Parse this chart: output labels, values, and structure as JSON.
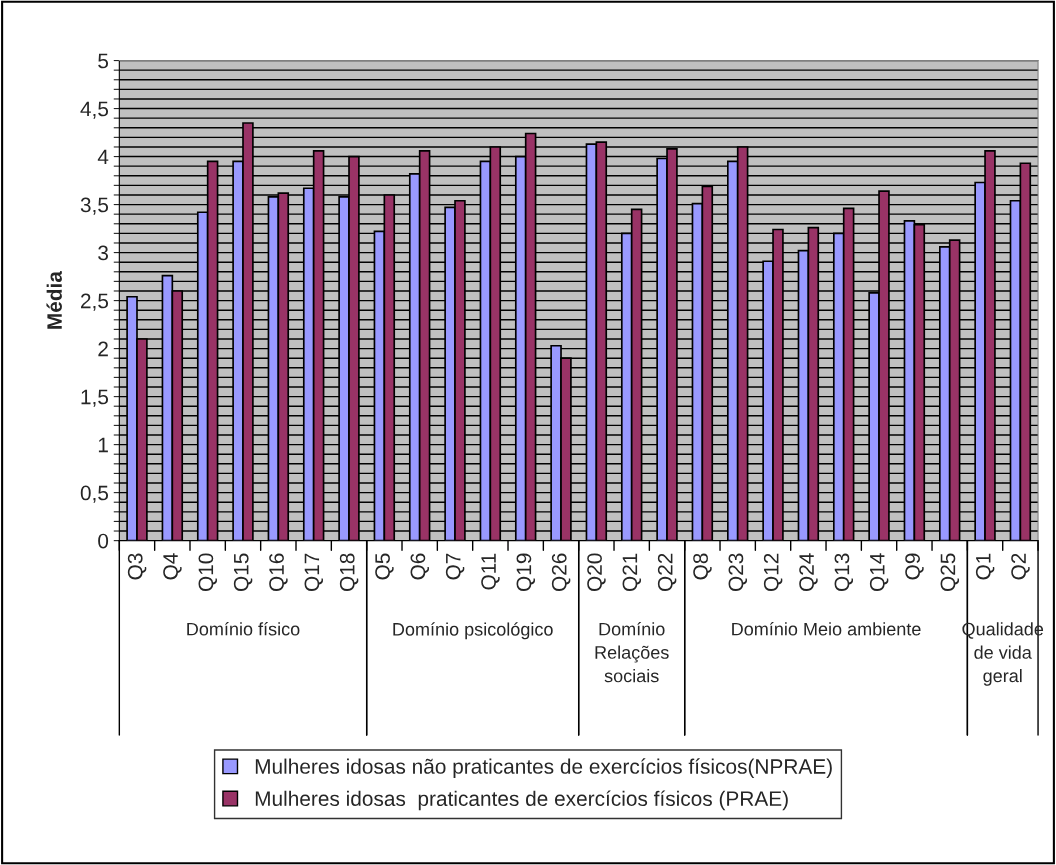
{
  "chart_data": {
    "type": "bar",
    "ylabel": "Média",
    "categories": [
      "Q3",
      "Q4",
      "Q10",
      "Q15",
      "Q16",
      "Q17",
      "Q18",
      "Q5",
      "Q6",
      "Q7",
      "Q11",
      "Q19",
      "Q26",
      "Q20",
      "Q21",
      "Q22",
      "Q8",
      "Q23",
      "Q12",
      "Q24",
      "Q13",
      "Q14",
      "Q9",
      "Q25",
      "Q1",
      "Q2"
    ],
    "series": [
      {
        "name": "Mulheres idosas não praticantes de exercícios físicos(NPRAE)",
        "color": "#9999ff",
        "values": [
          2.54,
          2.76,
          3.42,
          3.95,
          3.58,
          3.67,
          3.58,
          3.22,
          3.82,
          3.47,
          3.95,
          4.0,
          2.03,
          4.13,
          3.2,
          3.98,
          3.51,
          3.95,
          2.91,
          3.02,
          3.2,
          2.58,
          3.33,
          3.06,
          3.73,
          3.54
        ]
      },
      {
        "name": "Mulheres idosas  praticantes de exercícios físicos (PRAE)",
        "color": "#993366",
        "values": [
          2.1,
          2.6,
          3.95,
          4.35,
          3.62,
          4.06,
          4.0,
          3.6,
          4.06,
          3.54,
          4.1,
          4.24,
          1.9,
          4.15,
          3.45,
          4.08,
          3.69,
          4.1,
          3.24,
          3.26,
          3.46,
          3.64,
          3.29,
          3.13,
          4.06,
          3.93
        ]
      }
    ],
    "annotations": [
      "Domínio físico",
      "Domínio psicológico",
      "Domínio\nRelações\nsociais",
      "Domínio Meio ambiente",
      "Qualidade\nde vida\ngeral"
    ],
    "ylim": [
      0,
      5
    ],
    "yticks": [
      0,
      {
        "value": 0.1,
        "label": null
      },
      {
        "value": 0.2,
        "label": null
      },
      {
        "value": 0.3,
        "label": null
      },
      {
        "value": 0.4,
        "label": null
      },
      {
        "value": 0.5,
        "label": "0,5"
      },
      {
        "value": 0.6,
        "label": null
      },
      {
        "value": 0.7,
        "label": null
      },
      {
        "value": 0.8,
        "label": null
      },
      {
        "value": 0.9,
        "label": null
      },
      1,
      {
        "value": 1.1,
        "label": null
      },
      {
        "value": 1.2,
        "label": null
      },
      {
        "value": 1.3,
        "label": null
      },
      {
        "value": 1.4,
        "label": null
      },
      {
        "value": 1.5,
        "label": "1,5"
      },
      {
        "value": 1.6,
        "label": null
      },
      {
        "value": 1.7,
        "label": null
      },
      {
        "value": 1.8,
        "label": null
      },
      {
        "value": 1.9,
        "label": null
      },
      2,
      {
        "value": 2.1,
        "label": null
      },
      {
        "value": 2.2,
        "label": null
      },
      {
        "value": 2.3,
        "label": null
      },
      {
        "value": 2.4,
        "label": null
      },
      {
        "value": 2.5,
        "label": "2,5"
      },
      {
        "value": 2.6,
        "label": null
      },
      {
        "value": 2.7,
        "label": null
      },
      {
        "value": 2.8,
        "label": null
      },
      {
        "value": 2.9,
        "label": null
      },
      3,
      {
        "value": 3.1,
        "label": null
      },
      {
        "value": 3.2,
        "label": null
      },
      {
        "value": 3.3,
        "label": null
      },
      {
        "value": 3.4,
        "label": null
      },
      {
        "value": 3.5,
        "label": "3,5"
      },
      {
        "value": 3.6,
        "label": null
      },
      {
        "value": 3.7,
        "label": null
      },
      {
        "value": 3.8,
        "label": null
      },
      {
        "value": 3.9,
        "label": null
      },
      4,
      {
        "value": 4.1,
        "label": null
      },
      {
        "value": 4.2,
        "label": null
      },
      {
        "value": 4.3,
        "label": null
      },
      {
        "value": 4.4,
        "label": null
      },
      {
        "value": 4.5,
        "label": "4,5"
      },
      {
        "value": 4.6,
        "label": null
      },
      {
        "value": 4.7,
        "label": null
      },
      {
        "value": 4.8,
        "label": null
      },
      {
        "value": 4.9,
        "label": null
      },
      5
    ],
    "grid": "y",
    "legend": "bottom"
  }
}
